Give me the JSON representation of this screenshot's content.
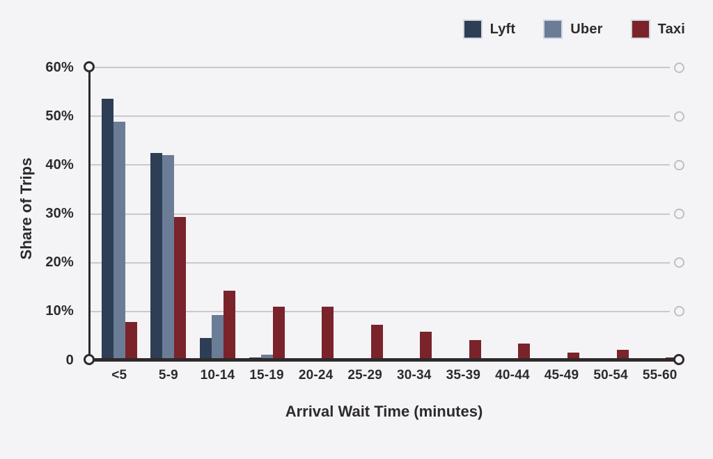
{
  "figure": {
    "background_color": "#f4f4f6",
    "axis_color": "#2e2a2b",
    "grid_color": "#c9c9cc",
    "text_color": "#2e2a2b"
  },
  "chart_data": {
    "type": "bar",
    "title": "",
    "xlabel": "Arrival Wait Time (minutes)",
    "ylabel": "Share of Trips",
    "categories": [
      "<5",
      "5-9",
      "10-14",
      "15-19",
      "20-24",
      "25-29",
      "30-34",
      "35-39",
      "40-44",
      "45-49",
      "50-54",
      "55-60"
    ],
    "series": [
      {
        "name": "Lyft",
        "color": "#2d3e55",
        "values": [
          53.6,
          42.5,
          4.5,
          0.5,
          0,
          0,
          0,
          0,
          0,
          0,
          0,
          0
        ]
      },
      {
        "name": "Uber",
        "color": "#6b7c96",
        "values": [
          48.9,
          42.0,
          9.3,
          1.2,
          0,
          0,
          0,
          0,
          0,
          0,
          0,
          0
        ]
      },
      {
        "name": "Taxi",
        "color": "#7a232b",
        "values": [
          7.9,
          29.3,
          14.3,
          11.0,
          11.0,
          7.3,
          5.9,
          4.1,
          3.4,
          1.5,
          2.2,
          0.6
        ]
      }
    ],
    "ylim": [
      0,
      60
    ],
    "yticks": [
      0,
      10,
      20,
      30,
      40,
      50,
      60
    ],
    "ytick_labels": [
      "0",
      "10%",
      "20%",
      "30%",
      "40%",
      "50%",
      "60%"
    ],
    "grid": "horizontal gridlines with open-circle right endpoints",
    "axis_style": "dark axes with open-circle endpoints",
    "legend_position": "top-right"
  },
  "legend": {
    "items": [
      {
        "label": "Lyft",
        "color": "#2d3e55"
      },
      {
        "label": "Uber",
        "color": "#6b7c96"
      },
      {
        "label": "Taxi",
        "color": "#7a232b"
      }
    ]
  }
}
